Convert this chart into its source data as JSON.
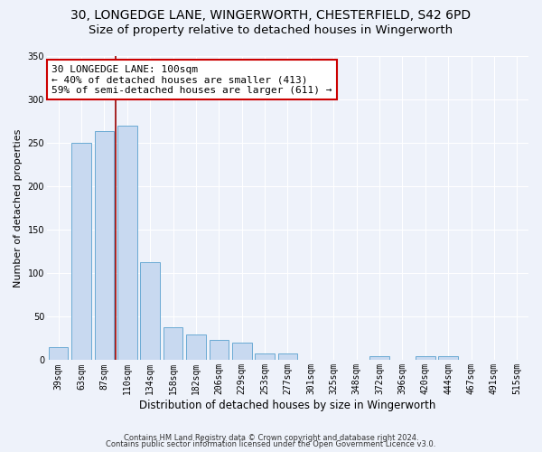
{
  "title1": "30, LONGEDGE LANE, WINGERWORTH, CHESTERFIELD, S42 6PD",
  "title2": "Size of property relative to detached houses in Wingerworth",
  "xlabel": "Distribution of detached houses by size in Wingerworth",
  "ylabel": "Number of detached properties",
  "categories": [
    "39sqm",
    "63sqm",
    "87sqm",
    "110sqm",
    "134sqm",
    "158sqm",
    "182sqm",
    "206sqm",
    "229sqm",
    "253sqm",
    "277sqm",
    "301sqm",
    "325sqm",
    "348sqm",
    "372sqm",
    "396sqm",
    "420sqm",
    "444sqm",
    "467sqm",
    "491sqm",
    "515sqm"
  ],
  "values": [
    15,
    250,
    263,
    270,
    113,
    38,
    30,
    23,
    20,
    8,
    8,
    0,
    0,
    0,
    5,
    0,
    5,
    5,
    0,
    0,
    0
  ],
  "bar_color": "#c8d9f0",
  "bar_edge_color": "#6aaad4",
  "vline_x": 2.5,
  "vline_color": "#990000",
  "annotation_text": "30 LONGEDGE LANE: 100sqm\n← 40% of detached houses are smaller (413)\n59% of semi-detached houses are larger (611) →",
  "annotation_box_color": "white",
  "annotation_box_edge": "#cc0000",
  "ylim": [
    0,
    350
  ],
  "yticks": [
    0,
    50,
    100,
    150,
    200,
    250,
    300,
    350
  ],
  "footnote1": "Contains HM Land Registry data © Crown copyright and database right 2024.",
  "footnote2": "Contains public sector information licensed under the Open Government Licence v3.0.",
  "background_color": "#eef2fa",
  "grid_color": "#ffffff",
  "title1_fontsize": 10,
  "title2_fontsize": 9.5,
  "xlabel_fontsize": 8.5,
  "ylabel_fontsize": 8,
  "tick_fontsize": 7,
  "annotation_fontsize": 8,
  "footnote_fontsize": 6
}
